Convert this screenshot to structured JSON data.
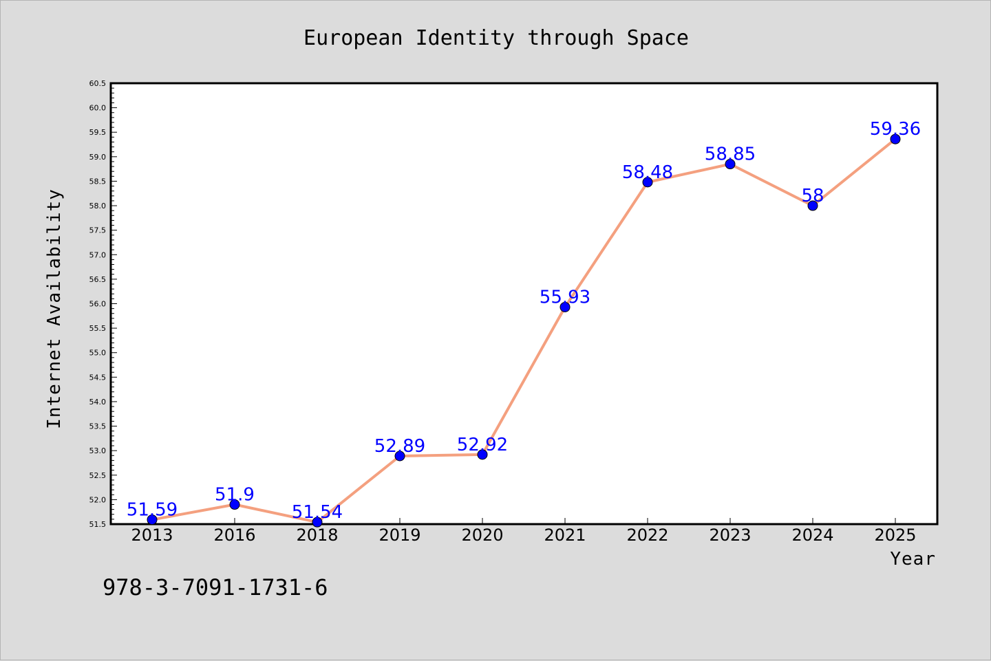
{
  "footer": {
    "code": "978-3-7091-1731-6"
  },
  "chart_data": {
    "type": "line",
    "title": "European Identity through Space",
    "xlabel": "Year",
    "ylabel": "Internet Availability",
    "categories": [
      "2013",
      "2016",
      "2018",
      "2019",
      "2020",
      "2021",
      "2022",
      "2023",
      "2024",
      "2025"
    ],
    "series": [
      {
        "values": [
          51.59,
          51.9,
          51.54,
          52.89,
          52.92,
          55.93,
          58.48,
          58.85,
          58,
          59.36
        ]
      }
    ],
    "data_labels": [
      "51.59",
      "51.9",
      "51.54",
      "52.89",
      "52.92",
      "55.93",
      "58.48",
      "58.85",
      "58",
      "59.36"
    ],
    "ylim": [
      51.5,
      60.5
    ],
    "yticks": [
      "51.5",
      "52.0",
      "52.5",
      "53.0",
      "53.5",
      "54.0",
      "54.5",
      "55.0",
      "55.5",
      "56.0",
      "56.5",
      "57.0",
      "57.5",
      "58.0",
      "58.5",
      "59.0",
      "59.5",
      "60.0",
      "60.5"
    ],
    "grid": false,
    "colors": {
      "line": "#f4a07f",
      "marker": "#0000ff",
      "label": "#0000ff",
      "background": "#dcdcdc",
      "plot_area": "#ffffff"
    }
  }
}
